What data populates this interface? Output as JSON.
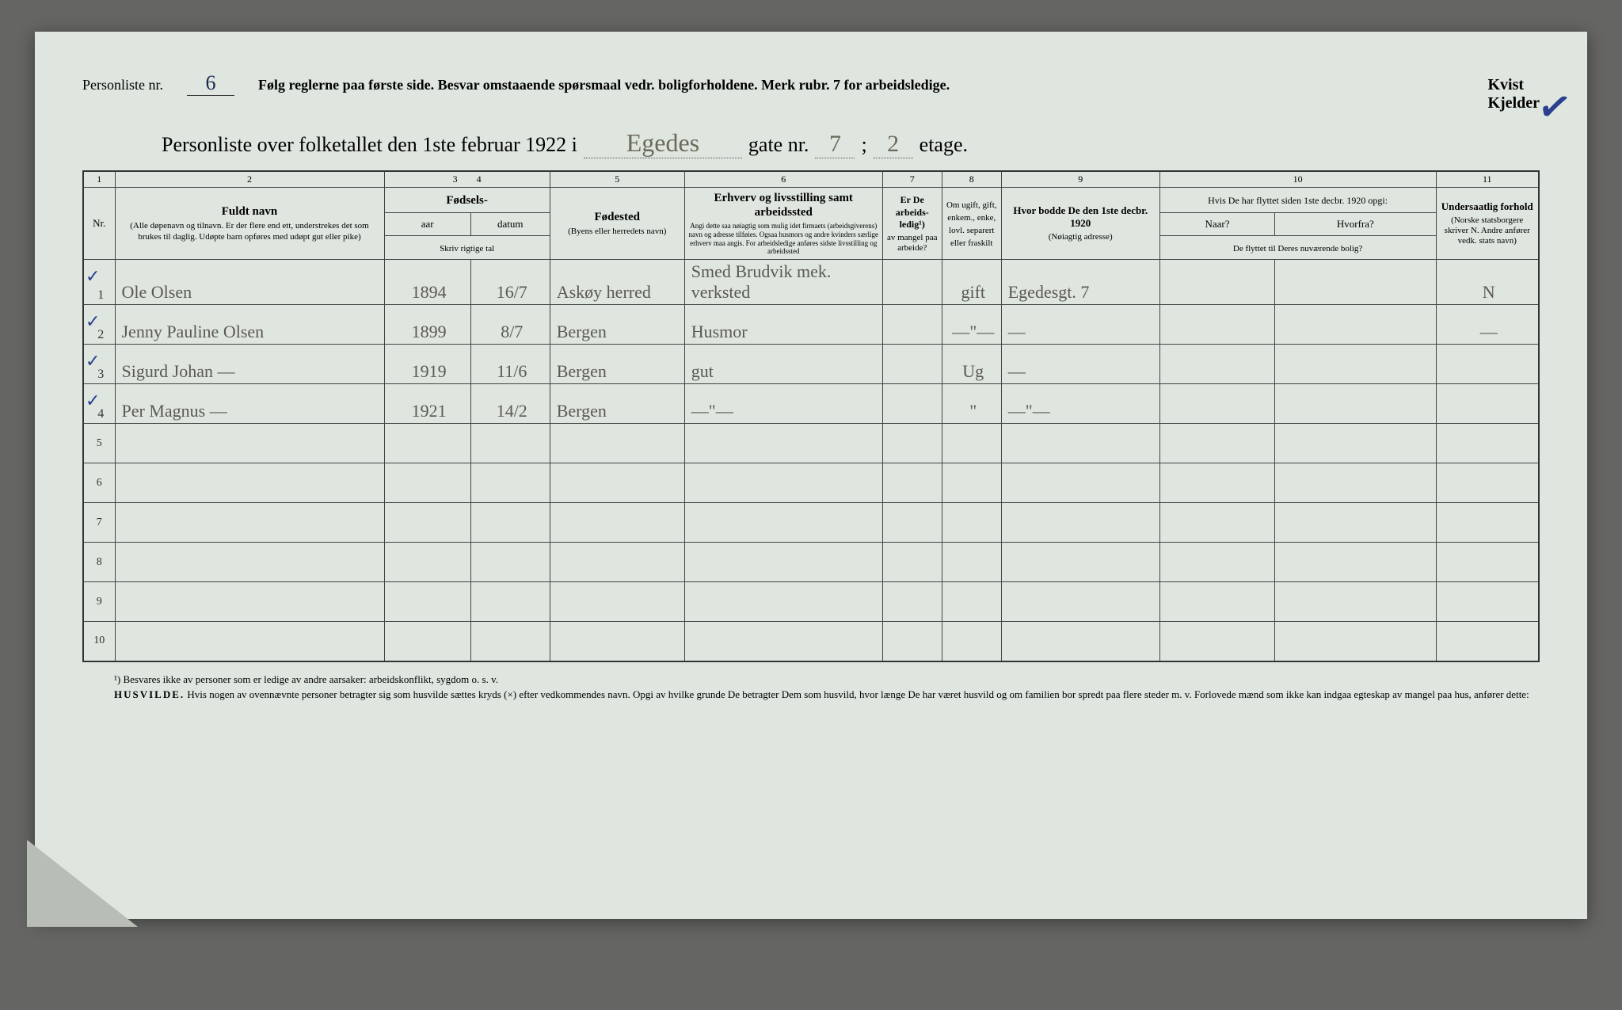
{
  "header": {
    "personliste_label": "Personliste nr.",
    "personliste_nr": "6",
    "instructions": "Følg reglerne paa første side.   Besvar omstaaende spørsmaal vedr. boligforholdene.   Merk rubr. 7 for arbeidsledige.",
    "kvist": "Kvist",
    "kjelder": "Kjelder"
  },
  "title": {
    "prefix": "Personliste over folketallet den 1ste februar 1922 i",
    "street": "Egedes",
    "gate_label": "gate nr.",
    "gate_nr": "7",
    "semicolon": ";",
    "etage_nr": "2",
    "etage_label": "etage."
  },
  "columns": {
    "nums": [
      "1",
      "2",
      "3",
      "4",
      "5",
      "6",
      "7",
      "8",
      "9",
      "10",
      "11"
    ],
    "c1": "Nr.",
    "c2_main": "Fuldt navn",
    "c2_sub": "(Alle døpenavn og tilnavn. Er der flere end ett, understrekes det som brukes til daglig. Udøpte barn opføres med udøpt gut eller pike)",
    "c34_main": "Fødsels-",
    "c3": "aar",
    "c4": "datum",
    "c34_sub": "Skriv rigtige tal",
    "c5_main": "Fødested",
    "c5_sub": "(Byens eller herredets navn)",
    "c6_main": "Erhverv og livsstilling samt arbeidssted",
    "c6_sub": "Angi dette saa nøiagtig som mulig idet firmaets (arbeidsgiverens) navn og adresse tilføies. Ogsaa husmors og andre kvinders særlige erhverv maa angis. For arbeidsledige anføres sidste livsstilling og arbeidssted",
    "c7_main": "Er De arbeids-ledig¹)",
    "c7_sub": "av mangel paa arbeide?",
    "c8_main": "Om ugift, gift, enkem., enke, lovl. separert eller fraskilt",
    "c9_main": "Hvor bodde De den 1ste decbr. 1920",
    "c9_sub": "(Nøiagtig adresse)",
    "c10_main": "Hvis De har flyttet siden 1ste decbr. 1920 opgi:",
    "c10a": "Naar?",
    "c10b": "Hvorfra?",
    "c10_sub": "De flyttet til Deres nuværende bolig?",
    "c11_main": "Undersaatlig forhold",
    "c11_sub": "(Norske statsborgere skriver N. Andre anfører vedk. stats navn)"
  },
  "rows": [
    {
      "nr": "1",
      "navn": "Ole Olsen",
      "aar": "1894",
      "datum": "16/7",
      "fodested": "Askøy herred",
      "erhverv": "Smed Brudvik mek. verksted",
      "ledig": "",
      "status": "gift",
      "bodde": "Egedesgt. 7",
      "naar": "",
      "hvorfra": "",
      "forhold": "N"
    },
    {
      "nr": "2",
      "navn": "Jenny Pauline Olsen",
      "aar": "1899",
      "datum": "8/7",
      "fodested": "Bergen",
      "erhverv": "Husmor",
      "ledig": "",
      "status": "—\"—",
      "bodde": "—",
      "naar": "",
      "hvorfra": "",
      "forhold": "—"
    },
    {
      "nr": "3",
      "navn": "Sigurd Johan     —",
      "aar": "1919",
      "datum": "11/6",
      "fodested": "Bergen",
      "erhverv": "gut",
      "ledig": "",
      "status": "Ug",
      "bodde": "—",
      "naar": "",
      "hvorfra": "",
      "forhold": ""
    },
    {
      "nr": "4",
      "navn": "Per Magnus     —",
      "aar": "1921",
      "datum": "14/2",
      "fodested": "Bergen",
      "erhverv": "—\"—",
      "ledig": "",
      "status": "\"",
      "bodde": "—\"—",
      "naar": "",
      "hvorfra": "",
      "forhold": ""
    }
  ],
  "empty_rows": [
    "5",
    "6",
    "7",
    "8",
    "9",
    "10"
  ],
  "footnotes": {
    "f1": "¹) Besvares ikke av personer som er ledige av andre aarsaker: arbeidskonflikt, sygdom o. s. v.",
    "f2a": "HUSVILDE.",
    "f2b": "Hvis nogen av ovennævnte personer betragter sig som husvilde sættes kryds (×) efter vedkommendes navn. Opgi av hvilke grunde De betragter Dem som husvild, hvor længe De har været husvild og om familien bor spredt paa flere steder m. v. Forlovede mænd som ikke kan indgaa egteskap av mangel paa hus, anfører dette:"
  }
}
